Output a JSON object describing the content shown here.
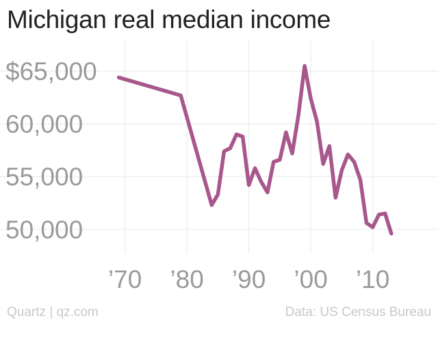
{
  "chart_data": {
    "type": "line",
    "title": "Michigan real median income",
    "ylim": [
      47000,
      67000
    ],
    "xlim": [
      1964,
      2020
    ],
    "grid": true,
    "y_ticks": [
      {
        "value": 65000,
        "label": "$65,000"
      },
      {
        "value": 60000,
        "label": "60,000"
      },
      {
        "value": 55000,
        "label": "55,000"
      },
      {
        "value": 50000,
        "label": "50,000"
      }
    ],
    "x_ticks": [
      {
        "value": 1970,
        "label": "’70"
      },
      {
        "value": 1980,
        "label": "’80"
      },
      {
        "value": 1990,
        "label": "’90"
      },
      {
        "value": 2000,
        "label": "’00"
      },
      {
        "value": 2010,
        "label": "’10"
      }
    ],
    "series": [
      {
        "color": "#a8578c",
        "x": [
          1969,
          1979,
          1984,
          1985,
          1986,
          1987,
          1988,
          1989,
          1990,
          1991,
          1992,
          1993,
          1994,
          1995,
          1996,
          1997,
          1998,
          1999,
          2000,
          2001,
          2002,
          2003,
          2004,
          2005,
          2006,
          2007,
          2008,
          2009,
          2010,
          2011,
          2012,
          2013
        ],
        "y": [
          64400,
          62700,
          52300,
          53300,
          57400,
          57700,
          59000,
          58800,
          54200,
          55800,
          54500,
          53500,
          56400,
          56600,
          59200,
          57200,
          60800,
          65500,
          62400,
          60200,
          56200,
          57900,
          53000,
          55600,
          57100,
          56400,
          54700,
          50600,
          50200,
          51400,
          51500,
          49600
        ]
      }
    ]
  },
  "footer": {
    "source_left": "Quartz | qz.com",
    "source_right": "Data: US Census Bureau"
  }
}
